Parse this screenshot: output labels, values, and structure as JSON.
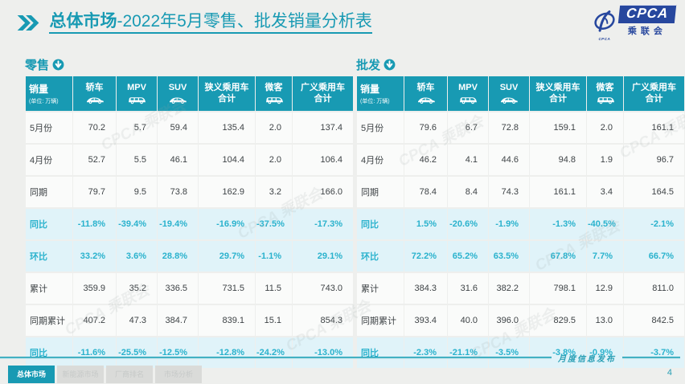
{
  "colors": {
    "teal": "#189ab3",
    "highlight_bg": "#e0f3f9",
    "highlight_text": "#2ab2cd",
    "logo_blue": "#27479e",
    "page_bg": "#eeefed"
  },
  "header": {
    "title_bold": "总体市场",
    "title_rest": "-2022年5月零售、批发销量分析表"
  },
  "logo": {
    "acronym": "CPCA",
    "name": "乘联会",
    "caption": "CPCA"
  },
  "watermark": "CPCA 乘联会",
  "columns": {
    "label": "销量",
    "unit": "(单位: 万辆)",
    "cols": [
      {
        "id": "sedan",
        "lines": [
          "轿车"
        ],
        "icon": "sedan-icon"
      },
      {
        "id": "mpv",
        "lines": [
          "MPV"
        ],
        "icon": "mpv-icon"
      },
      {
        "id": "suv",
        "lines": [
          "SUV"
        ],
        "icon": "suv-icon"
      },
      {
        "id": "narrow-pv-total",
        "lines": [
          "狭义乘用车",
          "合计"
        ],
        "icon": null
      },
      {
        "id": "minibus",
        "lines": [
          "微客"
        ],
        "icon": "minibus-icon"
      },
      {
        "id": "broad-pv-total",
        "lines": [
          "广义乘用车",
          "合计"
        ],
        "icon": null
      }
    ]
  },
  "tables": [
    {
      "name": "零售",
      "rows": [
        {
          "label": "5月份",
          "highlight": false,
          "values": [
            "70.2",
            "5.7",
            "59.4",
            "135.4",
            "2.0",
            "137.4"
          ]
        },
        {
          "label": "4月份",
          "highlight": false,
          "values": [
            "52.7",
            "5.5",
            "46.1",
            "104.4",
            "2.0",
            "106.4"
          ]
        },
        {
          "label": "同期",
          "highlight": false,
          "values": [
            "79.7",
            "9.5",
            "73.8",
            "162.9",
            "3.2",
            "166.0"
          ]
        },
        {
          "label": "同比",
          "highlight": true,
          "values": [
            "-11.8%",
            "-39.4%",
            "-19.4%",
            "-16.9%",
            "-37.5%",
            "-17.3%"
          ]
        },
        {
          "label": "环比",
          "highlight": true,
          "values": [
            "33.2%",
            "3.6%",
            "28.8%",
            "29.7%",
            "-1.1%",
            "29.1%"
          ]
        },
        {
          "label": "累计",
          "highlight": false,
          "values": [
            "359.9",
            "35.2",
            "336.5",
            "731.5",
            "11.5",
            "743.0"
          ]
        },
        {
          "label": "同期累计",
          "highlight": false,
          "values": [
            "407.2",
            "47.3",
            "384.7",
            "839.1",
            "15.1",
            "854.3"
          ]
        },
        {
          "label": "同比",
          "highlight": true,
          "values": [
            "-11.6%",
            "-25.5%",
            "-12.5%",
            "-12.8%",
            "-24.2%",
            "-13.0%"
          ]
        }
      ]
    },
    {
      "name": "批发",
      "rows": [
        {
          "label": "5月份",
          "highlight": false,
          "values": [
            "79.6",
            "6.7",
            "72.8",
            "159.1",
            "2.0",
            "161.1"
          ]
        },
        {
          "label": "4月份",
          "highlight": false,
          "values": [
            "46.2",
            "4.1",
            "44.6",
            "94.8",
            "1.9",
            "96.7"
          ]
        },
        {
          "label": "同期",
          "highlight": false,
          "values": [
            "78.4",
            "8.4",
            "74.3",
            "161.1",
            "3.4",
            "164.5"
          ]
        },
        {
          "label": "同比",
          "highlight": true,
          "values": [
            "1.5%",
            "-20.6%",
            "-1.9%",
            "-1.3%",
            "-40.5%",
            "-2.1%"
          ]
        },
        {
          "label": "环比",
          "highlight": true,
          "values": [
            "72.2%",
            "65.2%",
            "63.5%",
            "67.8%",
            "7.7%",
            "66.7%"
          ]
        },
        {
          "label": "累计",
          "highlight": false,
          "values": [
            "384.3",
            "31.6",
            "382.2",
            "798.1",
            "12.9",
            "811.0"
          ]
        },
        {
          "label": "同期累计",
          "highlight": false,
          "values": [
            "393.4",
            "40.0",
            "396.0",
            "829.5",
            "13.0",
            "842.5"
          ]
        },
        {
          "label": "同比",
          "highlight": true,
          "values": [
            "-2.3%",
            "-21.1%",
            "-3.5%",
            "-3.8%",
            "-0.9%",
            "-3.7%"
          ]
        }
      ]
    }
  ],
  "footer": {
    "tabs": [
      {
        "label": "总体市场",
        "active": true
      },
      {
        "label": "新能源市场",
        "active": false
      },
      {
        "label": "厂商排名",
        "active": false
      },
      {
        "label": "市场分析",
        "active": false
      }
    ],
    "release_label": "月度信息发布",
    "page": "4"
  }
}
